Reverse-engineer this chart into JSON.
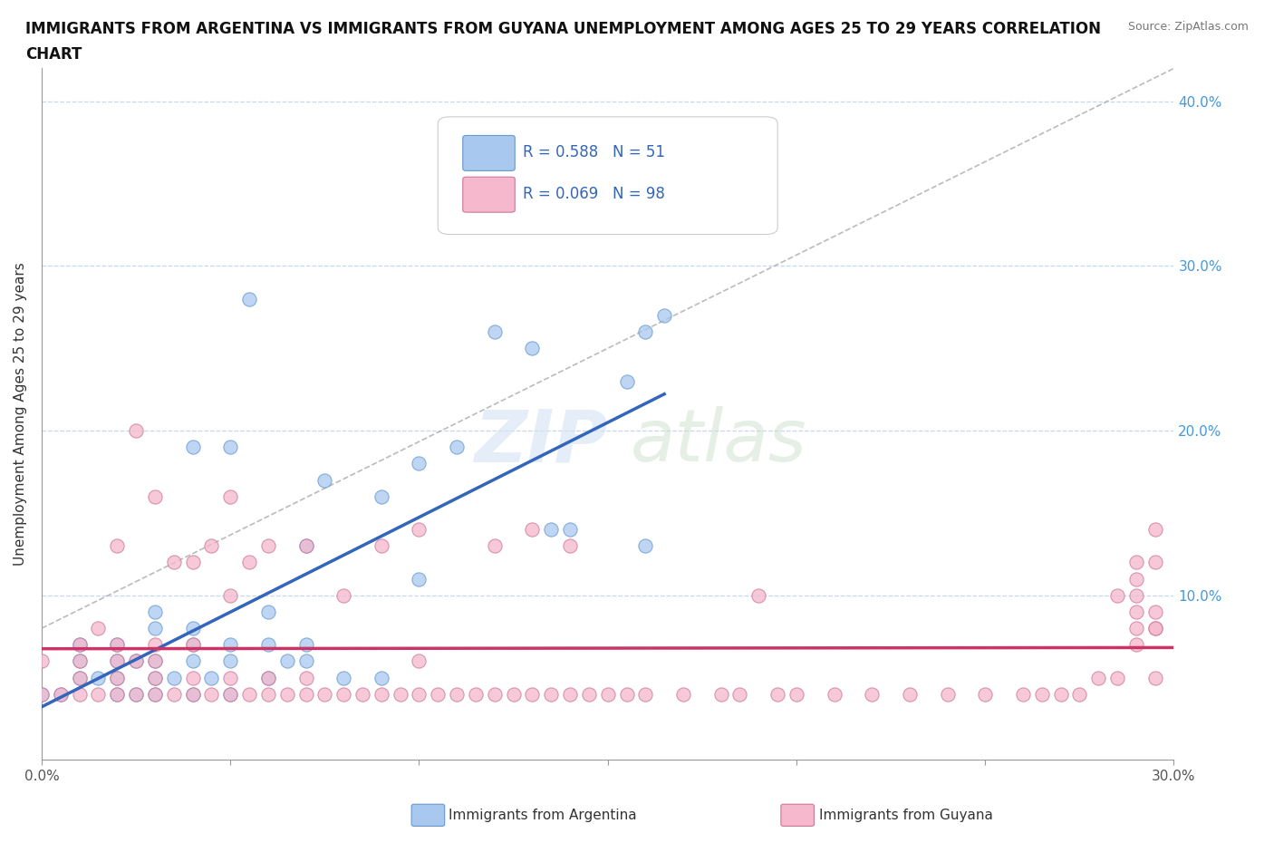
{
  "title_line1": "IMMIGRANTS FROM ARGENTINA VS IMMIGRANTS FROM GUYANA UNEMPLOYMENT AMONG AGES 25 TO 29 YEARS CORRELATION",
  "title_line2": "CHART",
  "source_text": "Source: ZipAtlas.com",
  "ylabel": "Unemployment Among Ages 25 to 29 years",
  "xlabel": "",
  "xlim": [
    0.0,
    0.3
  ],
  "ylim": [
    0.0,
    0.42
  ],
  "xticks": [
    0.0,
    0.05,
    0.1,
    0.15,
    0.2,
    0.25,
    0.3
  ],
  "yticks": [
    0.0,
    0.1,
    0.2,
    0.3,
    0.4
  ],
  "argentina_color": "#a8c8f0",
  "argentina_edge": "#6699cc",
  "guyana_color": "#f5b8cc",
  "guyana_edge": "#cc7799",
  "argentina_R": 0.588,
  "argentina_N": 51,
  "guyana_R": 0.069,
  "guyana_N": 98,
  "argentina_line_color": "#3366bb",
  "guyana_line_color": "#cc3366",
  "diagonal_color": "#aaaaaa",
  "argentina_scatter_x": [
    0.0,
    0.005,
    0.01,
    0.01,
    0.01,
    0.015,
    0.02,
    0.02,
    0.02,
    0.02,
    0.025,
    0.025,
    0.03,
    0.03,
    0.03,
    0.03,
    0.03,
    0.035,
    0.04,
    0.04,
    0.04,
    0.04,
    0.04,
    0.045,
    0.05,
    0.05,
    0.05,
    0.05,
    0.055,
    0.06,
    0.06,
    0.06,
    0.065,
    0.07,
    0.07,
    0.07,
    0.075,
    0.08,
    0.09,
    0.09,
    0.1,
    0.1,
    0.11,
    0.12,
    0.13,
    0.135,
    0.14,
    0.16,
    0.155,
    0.16,
    0.165
  ],
  "argentina_scatter_y": [
    0.04,
    0.04,
    0.05,
    0.06,
    0.07,
    0.05,
    0.04,
    0.05,
    0.06,
    0.07,
    0.04,
    0.06,
    0.04,
    0.05,
    0.06,
    0.08,
    0.09,
    0.05,
    0.04,
    0.06,
    0.07,
    0.08,
    0.19,
    0.05,
    0.04,
    0.06,
    0.07,
    0.19,
    0.28,
    0.05,
    0.07,
    0.09,
    0.06,
    0.06,
    0.07,
    0.13,
    0.17,
    0.05,
    0.05,
    0.16,
    0.11,
    0.18,
    0.19,
    0.26,
    0.25,
    0.14,
    0.14,
    0.13,
    0.23,
    0.26,
    0.27
  ],
  "guyana_scatter_x": [
    0.0,
    0.0,
    0.005,
    0.01,
    0.01,
    0.01,
    0.01,
    0.015,
    0.015,
    0.02,
    0.02,
    0.02,
    0.02,
    0.02,
    0.025,
    0.025,
    0.025,
    0.03,
    0.03,
    0.03,
    0.03,
    0.03,
    0.035,
    0.035,
    0.04,
    0.04,
    0.04,
    0.04,
    0.045,
    0.045,
    0.05,
    0.05,
    0.05,
    0.05,
    0.055,
    0.055,
    0.06,
    0.06,
    0.06,
    0.065,
    0.07,
    0.07,
    0.07,
    0.075,
    0.08,
    0.08,
    0.085,
    0.09,
    0.09,
    0.095,
    0.1,
    0.1,
    0.1,
    0.105,
    0.11,
    0.115,
    0.12,
    0.12,
    0.125,
    0.13,
    0.13,
    0.135,
    0.14,
    0.14,
    0.145,
    0.15,
    0.155,
    0.16,
    0.17,
    0.18,
    0.185,
    0.19,
    0.195,
    0.2,
    0.21,
    0.22,
    0.23,
    0.24,
    0.25,
    0.26,
    0.265,
    0.27,
    0.275,
    0.28,
    0.285,
    0.285,
    0.29,
    0.29,
    0.29,
    0.29,
    0.29,
    0.29,
    0.295,
    0.295,
    0.295,
    0.295,
    0.295,
    0.295
  ],
  "guyana_scatter_y": [
    0.04,
    0.06,
    0.04,
    0.04,
    0.05,
    0.06,
    0.07,
    0.04,
    0.08,
    0.04,
    0.05,
    0.06,
    0.07,
    0.13,
    0.04,
    0.06,
    0.2,
    0.04,
    0.05,
    0.06,
    0.07,
    0.16,
    0.04,
    0.12,
    0.04,
    0.05,
    0.07,
    0.12,
    0.04,
    0.13,
    0.04,
    0.05,
    0.1,
    0.16,
    0.04,
    0.12,
    0.04,
    0.05,
    0.13,
    0.04,
    0.04,
    0.05,
    0.13,
    0.04,
    0.04,
    0.1,
    0.04,
    0.04,
    0.13,
    0.04,
    0.04,
    0.06,
    0.14,
    0.04,
    0.04,
    0.04,
    0.04,
    0.13,
    0.04,
    0.04,
    0.14,
    0.04,
    0.04,
    0.13,
    0.04,
    0.04,
    0.04,
    0.04,
    0.04,
    0.04,
    0.04,
    0.1,
    0.04,
    0.04,
    0.04,
    0.04,
    0.04,
    0.04,
    0.04,
    0.04,
    0.04,
    0.04,
    0.04,
    0.05,
    0.05,
    0.1,
    0.07,
    0.08,
    0.09,
    0.1,
    0.11,
    0.12,
    0.05,
    0.08,
    0.09,
    0.12,
    0.14,
    0.08
  ]
}
